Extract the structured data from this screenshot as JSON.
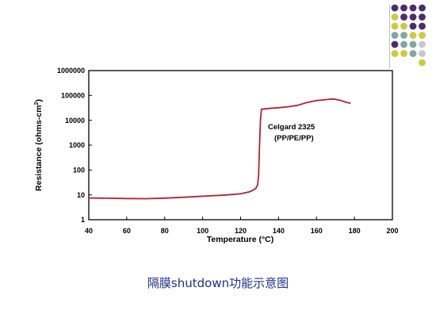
{
  "caption": "隔膜shutdown功能示意图",
  "decor": {
    "dot_colors": {
      "purple": "#4d2c6e",
      "yellow": "#c9cc3f",
      "teal": "#7fa7a3",
      "gray": "#c8c8c8"
    },
    "dot_rows": [
      [
        "purple",
        "purple",
        "purple",
        "purple"
      ],
      [
        "yellow",
        "purple",
        "purple",
        "purple"
      ],
      [
        "yellow",
        "yellow",
        "purple",
        "purple"
      ],
      [
        "teal",
        "teal",
        "yellow",
        "yellow"
      ],
      [
        "purple",
        "teal",
        "teal",
        "gray"
      ],
      [
        "yellow",
        "yellow",
        "teal",
        "gray"
      ],
      [
        "",
        "",
        "",
        "yellow"
      ]
    ]
  },
  "chart_data": {
    "type": "line",
    "xlabel": "Temperature (°C)",
    "ylabel": "Resistance (ohms-cm",
    "ylabel_sup": "2",
    "ylabel_end": ")",
    "xlim": [
      40,
      200
    ],
    "ylim": [
      1,
      1000000
    ],
    "yscale": "log",
    "x_ticks": [
      "40",
      "60",
      "80",
      "100",
      "120",
      "140",
      "160",
      "180",
      "200"
    ],
    "y_ticks": [
      "1",
      "10",
      "100",
      "1000",
      "10000",
      "100000",
      "1000000"
    ],
    "grid": false,
    "line_color": "#b22234",
    "annotation": [
      "Celgard 2325",
      "(PP/PE/PP)"
    ],
    "series": [
      {
        "name": "Celgard 2325 (PP/PE/PP)",
        "points": [
          [
            40,
            7.5
          ],
          [
            50,
            7.3
          ],
          [
            60,
            7.1
          ],
          [
            70,
            7.0
          ],
          [
            80,
            7.4
          ],
          [
            90,
            8.0
          ],
          [
            100,
            8.8
          ],
          [
            110,
            9.6
          ],
          [
            115,
            10.3
          ],
          [
            120,
            11.0
          ],
          [
            125,
            13.5
          ],
          [
            128,
            18
          ],
          [
            129,
            25
          ],
          [
            129.5,
            60
          ],
          [
            130,
            1000
          ],
          [
            130.5,
            10000
          ],
          [
            131,
            28000
          ],
          [
            135,
            30000
          ],
          [
            140,
            32000
          ],
          [
            145,
            35000
          ],
          [
            150,
            40000
          ],
          [
            155,
            52000
          ],
          [
            160,
            62000
          ],
          [
            165,
            68000
          ],
          [
            168,
            72000
          ],
          [
            170,
            70000
          ],
          [
            173,
            62000
          ],
          [
            175,
            55000
          ],
          [
            178,
            48000
          ]
        ]
      }
    ]
  }
}
